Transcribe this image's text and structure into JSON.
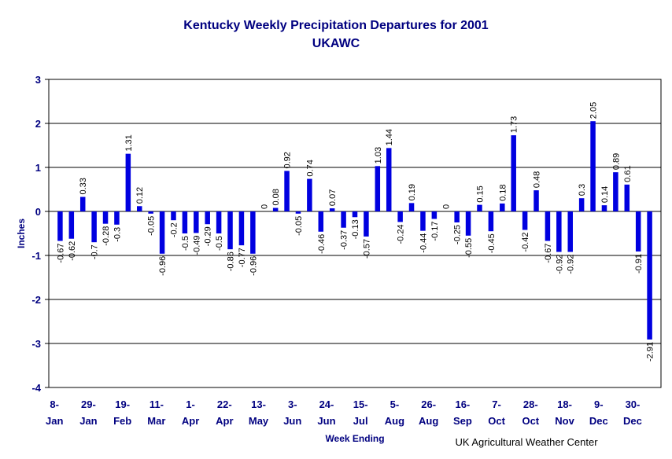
{
  "chart_data": {
    "type": "bar",
    "title": "Kentucky Weekly Precipitation Departures for 2001",
    "subtitle": "UKAWC",
    "xlabel": "Week Ending",
    "ylabel": "Inches",
    "ylim": [
      -4,
      3
    ],
    "y_ticks": [
      3,
      2,
      1,
      0,
      -1,
      -2,
      -3,
      -4
    ],
    "grid": true,
    "bar_color": "#0000e0",
    "x_tick_labels": [
      [
        "8-",
        "Jan"
      ],
      [
        "29-",
        "Jan"
      ],
      [
        "19-",
        "Feb"
      ],
      [
        "11-",
        "Mar"
      ],
      [
        "1-",
        "Apr"
      ],
      [
        "22-",
        "Apr"
      ],
      [
        "13-",
        "May"
      ],
      [
        "3-",
        "Jun"
      ],
      [
        "24-",
        "Jun"
      ],
      [
        "15-",
        "Jul"
      ],
      [
        "5-",
        "Aug"
      ],
      [
        "26-",
        "Aug"
      ],
      [
        "16-",
        "Sep"
      ],
      [
        "7-",
        "Oct"
      ],
      [
        "28-",
        "Oct"
      ],
      [
        "18-",
        "Nov"
      ],
      [
        "9-",
        "Dec"
      ],
      [
        "30-",
        "Dec"
      ]
    ],
    "values": [
      -0.67,
      -0.62,
      0.33,
      -0.7,
      -0.28,
      -0.3,
      1.31,
      0.12,
      -0.05,
      -0.96,
      -0.2,
      -0.5,
      -0.49,
      -0.29,
      -0.5,
      -0.86,
      -0.77,
      -0.96,
      0,
      0.08,
      0.92,
      -0.05,
      0.74,
      -0.46,
      0.07,
      -0.37,
      -0.13,
      -0.57,
      1.03,
      1.44,
      -0.24,
      0.19,
      -0.44,
      -0.17,
      0,
      -0.25,
      -0.55,
      0.15,
      -0.45,
      0.18,
      1.73,
      -0.42,
      0.48,
      -0.67,
      -0.92,
      -0.92,
      0.3,
      2.05,
      0.14,
      0.89,
      0.61,
      -0.91,
      -2.91
    ]
  },
  "footer": {
    "credit": "UK Agricultural Weather Center"
  }
}
